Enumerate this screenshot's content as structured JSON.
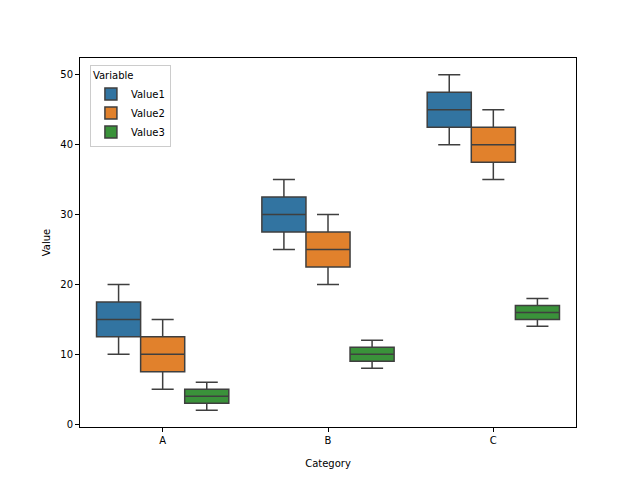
{
  "chart_data": {
    "type": "box",
    "xlabel": "Category",
    "ylabel": "Value",
    "categories": [
      "A",
      "B",
      "C"
    ],
    "legend": "upper left",
    "legend_title": "Variable",
    "grid": false,
    "ylim": [
      -0.4,
      52.4
    ],
    "yticks": [
      0,
      10,
      20,
      30,
      40,
      50
    ],
    "series": [
      {
        "name": "Value1",
        "color": "#3274a1",
        "min": [
          10,
          25,
          40
        ],
        "q1": [
          12.5,
          27.5,
          42.5
        ],
        "median": [
          15,
          30,
          45
        ],
        "q3": [
          17.5,
          32.5,
          47.5
        ],
        "max": [
          20,
          35,
          50
        ]
      },
      {
        "name": "Value2",
        "color": "#e1812c",
        "min": [
          5,
          20,
          35
        ],
        "q1": [
          7.5,
          22.5,
          37.5
        ],
        "median": [
          10,
          25,
          40
        ],
        "q3": [
          12.5,
          27.5,
          42.5
        ],
        "max": [
          15,
          30,
          45
        ]
      },
      {
        "name": "Value3",
        "color": "#3a923a",
        "min": [
          2,
          8,
          14
        ],
        "q1": [
          3,
          9,
          15
        ],
        "median": [
          4,
          10,
          16
        ],
        "q3": [
          5,
          11,
          17
        ],
        "max": [
          6,
          12,
          18
        ]
      }
    ]
  }
}
